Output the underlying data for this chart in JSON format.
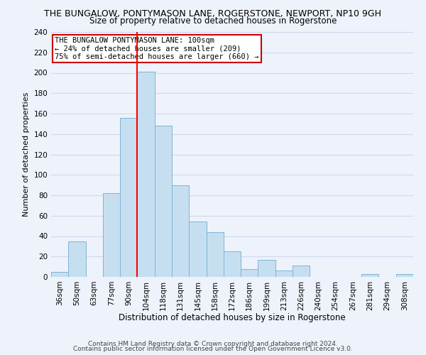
{
  "title": "THE BUNGALOW, PONTYMASON LANE, ROGERSTONE, NEWPORT, NP10 9GH",
  "subtitle": "Size of property relative to detached houses in Rogerstone",
  "xlabel": "Distribution of detached houses by size in Rogerstone",
  "ylabel": "Number of detached properties",
  "bar_labels": [
    "36sqm",
    "50sqm",
    "63sqm",
    "77sqm",
    "90sqm",
    "104sqm",
    "118sqm",
    "131sqm",
    "145sqm",
    "158sqm",
    "172sqm",
    "186sqm",
    "199sqm",
    "213sqm",
    "226sqm",
    "240sqm",
    "254sqm",
    "267sqm",
    "281sqm",
    "294sqm",
    "308sqm"
  ],
  "bar_values": [
    5,
    35,
    0,
    82,
    156,
    201,
    148,
    90,
    54,
    44,
    25,
    8,
    17,
    6,
    11,
    0,
    0,
    0,
    3,
    0,
    3
  ],
  "bar_color": "#c6dff0",
  "bar_edge_color": "#7fb3d3",
  "vline_color": "red",
  "vline_x_idx": 4.5,
  "annotation_title": "THE BUNGALOW PONTYMASON LANE: 100sqm",
  "annotation_line1": "← 24% of detached houses are smaller (209)",
  "annotation_line2": "75% of semi-detached houses are larger (660) →",
  "annotation_box_color": "white",
  "annotation_box_edge": "#cc0000",
  "ylim": [
    0,
    240
  ],
  "yticks": [
    0,
    20,
    40,
    60,
    80,
    100,
    120,
    140,
    160,
    180,
    200,
    220,
    240
  ],
  "footer1": "Contains HM Land Registry data © Crown copyright and database right 2024.",
  "footer2": "Contains public sector information licensed under the Open Government Licence v3.0.",
  "bg_color": "#eef2fb",
  "grid_color": "#d0d8ee",
  "title_fontsize": 9,
  "subtitle_fontsize": 8.5,
  "xlabel_fontsize": 8.5,
  "ylabel_fontsize": 8,
  "tick_fontsize": 7.5,
  "annotation_fontsize": 7.5,
  "footer_fontsize": 6.5
}
